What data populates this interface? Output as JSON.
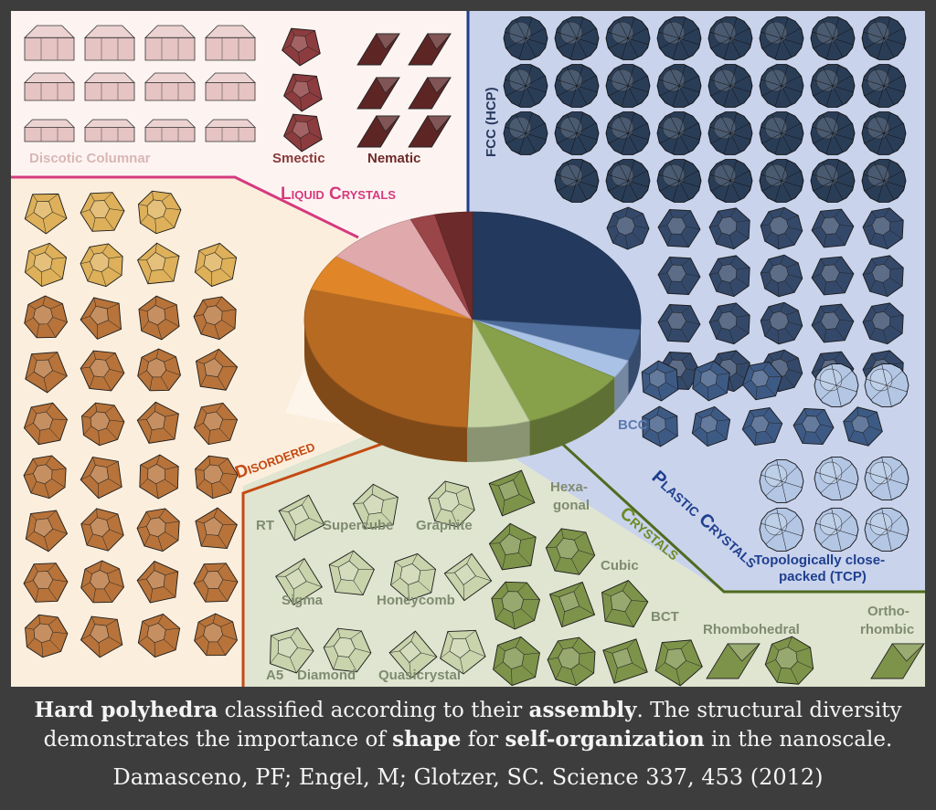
{
  "figure": {
    "categories": {
      "liquid_crystals": "Liquid Crystals",
      "plastic_crystals": "Plastic Crystals",
      "crystals": "Crystals",
      "disordered": "Disordered"
    },
    "labels": {
      "discotic": "Discotic Columnar",
      "smectic": "Smectic",
      "nematic": "Nematic",
      "fcc": "FCC (HCP)",
      "bcc": "BCC",
      "tcp_line1": "Topologically close-",
      "tcp_line2": "packed (TCP)",
      "rt": "RT",
      "supercube": "Supercube",
      "graphite": "Graphite",
      "sigma": "Sigma",
      "honeycomb": "Honeycomb",
      "a5": "A5",
      "diamond": "Diamond",
      "quasicrystal": "Quasicrystal",
      "hexagonal_1": "Hexa-",
      "hexagonal_2": "gonal",
      "cubic": "Cubic",
      "bct": "BCT",
      "rhombohedral": "Rhombohedral",
      "orthorhombic_1": "Ortho-",
      "orthorhombic_2": "rhombic"
    },
    "colors": {
      "liquid_border": "#d63a7f",
      "plastic_border": "#1f3f8f",
      "crystal_border": "#4f6b1e",
      "disordered_border": "#c44a12",
      "fcc_slice": "#23395d",
      "bcc_slice": "#4e6d9c",
      "tcp_slice": "#a9c2e6",
      "crystal_slice": "#87a04a",
      "crystal_light_slice": "#c5d3a3",
      "disordered_slice": "#b76a22",
      "disordered_orange": "#e08628",
      "discotic_slice": "#e0aaad",
      "smectic_slice": "#9a4548",
      "nematic_slice": "#6c2a2a"
    }
  },
  "pie_data": {
    "type": "pie",
    "slices": [
      {
        "key": "fcc",
        "fraction": 0.265
      },
      {
        "key": "bcc",
        "fraction": 0.047
      },
      {
        "key": "tcp",
        "fraction": 0.028
      },
      {
        "key": "crystal",
        "fraction": 0.105
      },
      {
        "key": "crystal_light",
        "fraction": 0.06
      },
      {
        "key": "disordered",
        "fraction": 0.29
      },
      {
        "key": "disordered_orange",
        "fraction": 0.055
      },
      {
        "key": "discotic",
        "fraction": 0.09
      },
      {
        "key": "smectic",
        "fraction": 0.024
      },
      {
        "key": "nematic",
        "fraction": 0.036
      }
    ]
  },
  "caption": {
    "line1_bold1": "Hard polyhedra",
    "line1_text1": " classified according to their ",
    "line1_bold2": "assembly",
    "line1_text2": ". The structural diversity demonstrates the importance of ",
    "line1_bold3": "shape",
    "line1_text3": " for ",
    "line1_bold4": "self-organization",
    "line1_text4": " in the nanoscale.",
    "citation": "Damasceno, PF; Engel, M; Glotzer, SC. Science 337, 453 (2012)"
  }
}
